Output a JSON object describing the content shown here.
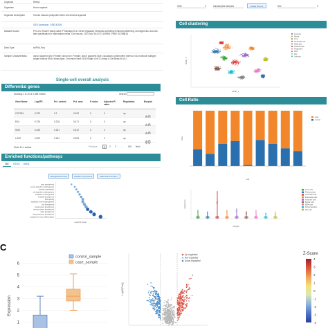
{
  "info_table": {
    "rows": [
      {
        "label": "Organoid",
        "value": "Retina"
      },
      {
        "label": "Organism",
        "value": "Homo sapiens"
      },
      {
        "label": "Organoid Description",
        "value": "Human induced pluripotent stem cell derived organoid"
      },
      {
        "label": "",
        "value": "GEO Accession: GSE142526"
      },
      {
        "label": "Dataset Source",
        "value": "Phi Lieu Thanh Hoang Claire P Sarriago et al. Gene regulatory networks controlling temporal patterning, neurogenesis, and cell-fate specification in mammalian retina. Cell reports, 2021 Nov 16;37(7):109994. PMID: 34788618"
      },
      {
        "label": "Data Type",
        "value": "scRNA-Seq"
      },
      {
        "label": "Sample Characteristics",
        "value": "donor apparent sex: Female; donor sex: Female; donor apparent race: caucasian; postmortem interval: n/a; molecule subtype: single nucleus RNA; library type: Chromium Next GEM Single Cell 3' Library & Gel Bead Kit v3.1"
      }
    ]
  },
  "single_cell_title": "Single-cell overall analysis",
  "diff_genes": {
    "title": "Differential genes",
    "showing": "Showing 1 to 10 of 1,489 entries",
    "search_label": "Search:",
    "columns": [
      "Gene Name",
      "Log2FC",
      "Pct. control",
      "Pct. case",
      "P-value",
      "Adjusted P-value",
      "Regulation",
      "Boxplot"
    ],
    "rows": [
      [
        "CYP1B1",
        "0.579",
        "0.2",
        "0.432",
        "0",
        "0",
        "up"
      ],
      [
        "EN1",
        "0.376",
        "0.218",
        "0.471",
        "0",
        "0",
        "up"
      ],
      [
        "SIX6",
        "0.426",
        "0.151",
        "0.412",
        "0",
        "0",
        "up"
      ],
      [
        "LHX9",
        "0.523",
        "0.304",
        "0.533",
        "0",
        "0",
        "up"
      ]
    ],
    "pager": {
      "show": "Show 10 ▾ entries",
      "previous": "Previous",
      "pages": [
        "1",
        "2",
        "3",
        "...",
        "149"
      ],
      "next": "Next"
    }
  },
  "enriched": {
    "title": "Enriched functions/pathways",
    "tabs": [
      "GO",
      "KEGG",
      "GSEA"
    ],
    "sub_buttons": [
      "Biological Process",
      "Cellular Component",
      "Molecular Function"
    ],
    "terms": [
      "axon development",
      "neuron projection morphogenesis",
      "synapse organization",
      "cell projection morphogenesis",
      "regulation of neurogenesis",
      "forebrain development",
      "RNA splicing",
      "regulation of cell morphogenesis",
      "eye development",
      "visual system development",
      "sensory system development",
      "retina development",
      "camera-type eye development",
      "regulation of neuron differentiation"
    ],
    "xlabel": "-Log10(P value)"
  },
  "top_controls": {
    "left_value": "GSE",
    "middle_value": "subsampled samples",
    "button_label": "cluster 30 umi",
    "right_value": "Sex"
  },
  "cell_clustering": {
    "title": "Cell clustering",
    "xlabel": "UMAP_1",
    "ylabel": "UMAP_2",
    "legend": [
      "Amacrine",
      "Bipolar",
      "Cone",
      "Horizontal cells",
      "Muller glia",
      "Photoreceptor",
      "Progenitors",
      "RGC",
      "Rod",
      "Unknown"
    ]
  },
  "cell_ratio": {
    "title": "Cell Ratio",
    "ylabel": "Ratio",
    "xlabel": "Cell",
    "legend": [
      "case",
      "control"
    ],
    "colors": {
      "case": "#f2862a",
      "control": "#2a70ae"
    }
  },
  "violin": {
    "ylabel": "Expression",
    "xlabel": "Celltype",
    "legend": [
      "Cone cells",
      "Photoreceptor",
      "Horizontal cells",
      "Endothelial cells",
      "Amacrine cells",
      "Bipolar cells",
      "Muller glia",
      "Retinal ganglion",
      "Rod cells"
    ]
  },
  "panel_letter": "C",
  "boxplot": {
    "ylabel": "Expression",
    "legend": [
      "control_sample",
      "case_sample"
    ],
    "yticks": [
      "6",
      "5",
      "4",
      "3",
      "2",
      "1"
    ],
    "colors": {
      "control": "#5c87c0",
      "case": "#eda25a"
    }
  },
  "volcano": {
    "xlabel": "log2FC",
    "ylabel": "-Log10(P-adj)",
    "legend": [
      "Up-regulated",
      "Not-regulated",
      "Down-regulated"
    ]
  },
  "heatmap": {
    "scale_title": "Z-Score",
    "scale_ticks": [
      "4",
      "3",
      "2",
      "1",
      "0",
      "-1",
      "-2",
      "-3",
      "-4"
    ]
  }
}
